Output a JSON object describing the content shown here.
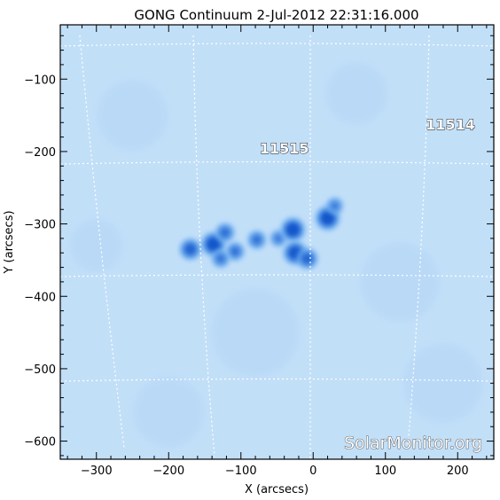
{
  "chart_data": {
    "type": "heatmap",
    "title": "GONG Continuum  2-Jul-2012 22:31:16.000",
    "xlabel": "X (arcsecs)",
    "ylabel": "Y (arcsecs)",
    "xlim": [
      -350,
      250
    ],
    "ylim": [
      -625,
      -25
    ],
    "x_ticks": [
      -300,
      -200,
      -100,
      0,
      100,
      200
    ],
    "y_ticks": [
      -100,
      -200,
      -300,
      -400,
      -500,
      -600
    ],
    "x_tick_labels": [
      "−300",
      "−200",
      "−100",
      "0",
      "100",
      "200"
    ],
    "y_tick_labels": [
      "−100",
      "−200",
      "−300",
      "−400",
      "−500",
      "−600"
    ],
    "grid": "on",
    "active_regions": [
      {
        "label": "11515",
        "x": -40,
        "y": -195
      },
      {
        "label": "11514",
        "x": 190,
        "y": -162
      }
    ],
    "sunspots": [
      {
        "x": -170,
        "y": -335,
        "darkness": 0.75
      },
      {
        "x": -138,
        "y": -328,
        "darkness": 1.0
      },
      {
        "x": -122,
        "y": -312,
        "darkness": 0.55
      },
      {
        "x": -108,
        "y": -338,
        "darkness": 0.5
      },
      {
        "x": -78,
        "y": -322,
        "darkness": 0.5
      },
      {
        "x": -128,
        "y": -348,
        "darkness": 0.45
      },
      {
        "x": -48,
        "y": -320,
        "darkness": 0.35
      },
      {
        "x": -28,
        "y": -308,
        "darkness": 1.0
      },
      {
        "x": -25,
        "y": -340,
        "darkness": 0.95
      },
      {
        "x": -8,
        "y": -348,
        "darkness": 0.7
      },
      {
        "x": 20,
        "y": -292,
        "darkness": 1.0
      },
      {
        "x": 30,
        "y": -275,
        "darkness": 0.35
      }
    ],
    "colors": {
      "background": "#c2dff8",
      "umbra": "#0a52c9",
      "penumbra": "#6aaaf0",
      "grid": "#ffffff"
    }
  },
  "watermark": "SolarMonitor.org"
}
